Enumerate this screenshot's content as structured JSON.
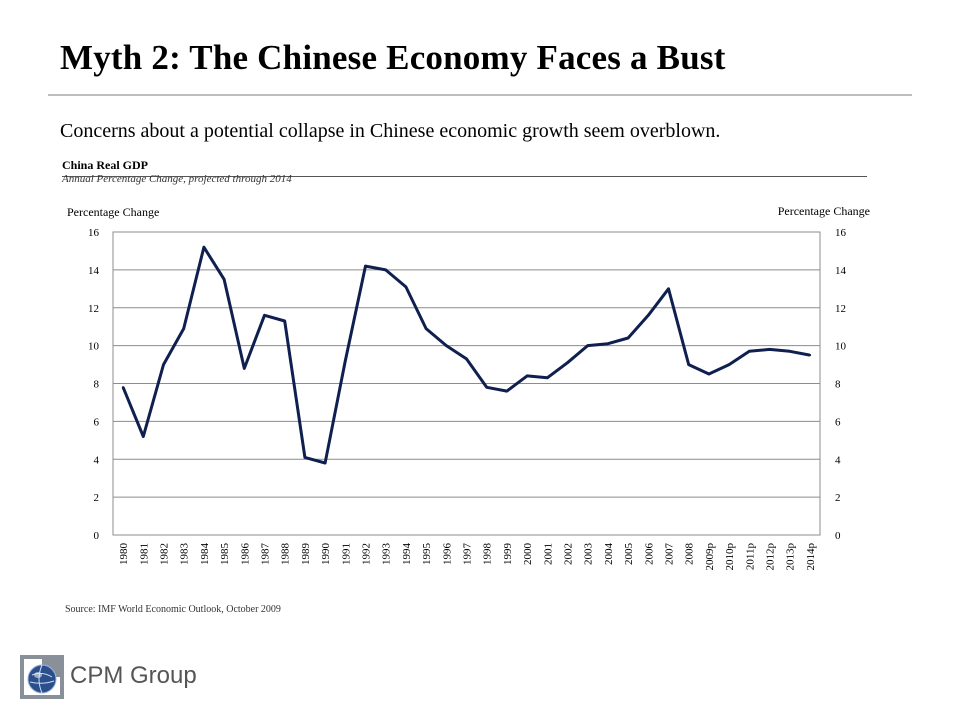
{
  "slide": {
    "title": "Myth 2: The Chinese Economy Faces a Bust",
    "subtitle": "Concerns about a potential collapse in Chinese economic growth seem overblown.",
    "source": "Source: IMF World Economic Outlook, October 2009",
    "logo_text": "CPM Group"
  },
  "colors": {
    "line": "#0f1f4f",
    "grid": "#8c8c8c",
    "rule": "#bdbdbd"
  },
  "chart_data": {
    "type": "line",
    "title": "China Real GDP",
    "subtitle": "Annual Percentage Change, projected through 2014",
    "ylabel_left": "Percentage Change",
    "ylabel_right": "Percentage Change",
    "ylim": [
      0,
      16
    ],
    "yticks": [
      0,
      2,
      4,
      6,
      8,
      10,
      12,
      14,
      16
    ],
    "grid": true,
    "categories": [
      "1980",
      "1981",
      "1982",
      "1983",
      "1984",
      "1985",
      "1986",
      "1987",
      "1988",
      "1989",
      "1990",
      "1991",
      "1992",
      "1993",
      "1994",
      "1995",
      "1996",
      "1997",
      "1998",
      "1999",
      "2000",
      "2001",
      "2002",
      "2003",
      "2004",
      "2005",
      "2006",
      "2007",
      "2008",
      "2009p",
      "2010p",
      "2011p",
      "2012p",
      "2013p",
      "2014p"
    ],
    "series": [
      {
        "name": "",
        "values": [
          7.8,
          5.2,
          9.0,
          10.9,
          15.2,
          13.5,
          8.8,
          11.6,
          11.3,
          4.1,
          3.8,
          9.2,
          14.2,
          14.0,
          13.1,
          10.9,
          10.0,
          9.3,
          7.8,
          7.6,
          8.4,
          8.3,
          9.1,
          10.0,
          10.1,
          10.4,
          11.6,
          13.0,
          9.0,
          8.5,
          9.0,
          9.7,
          9.8,
          9.7,
          9.5
        ]
      }
    ]
  }
}
